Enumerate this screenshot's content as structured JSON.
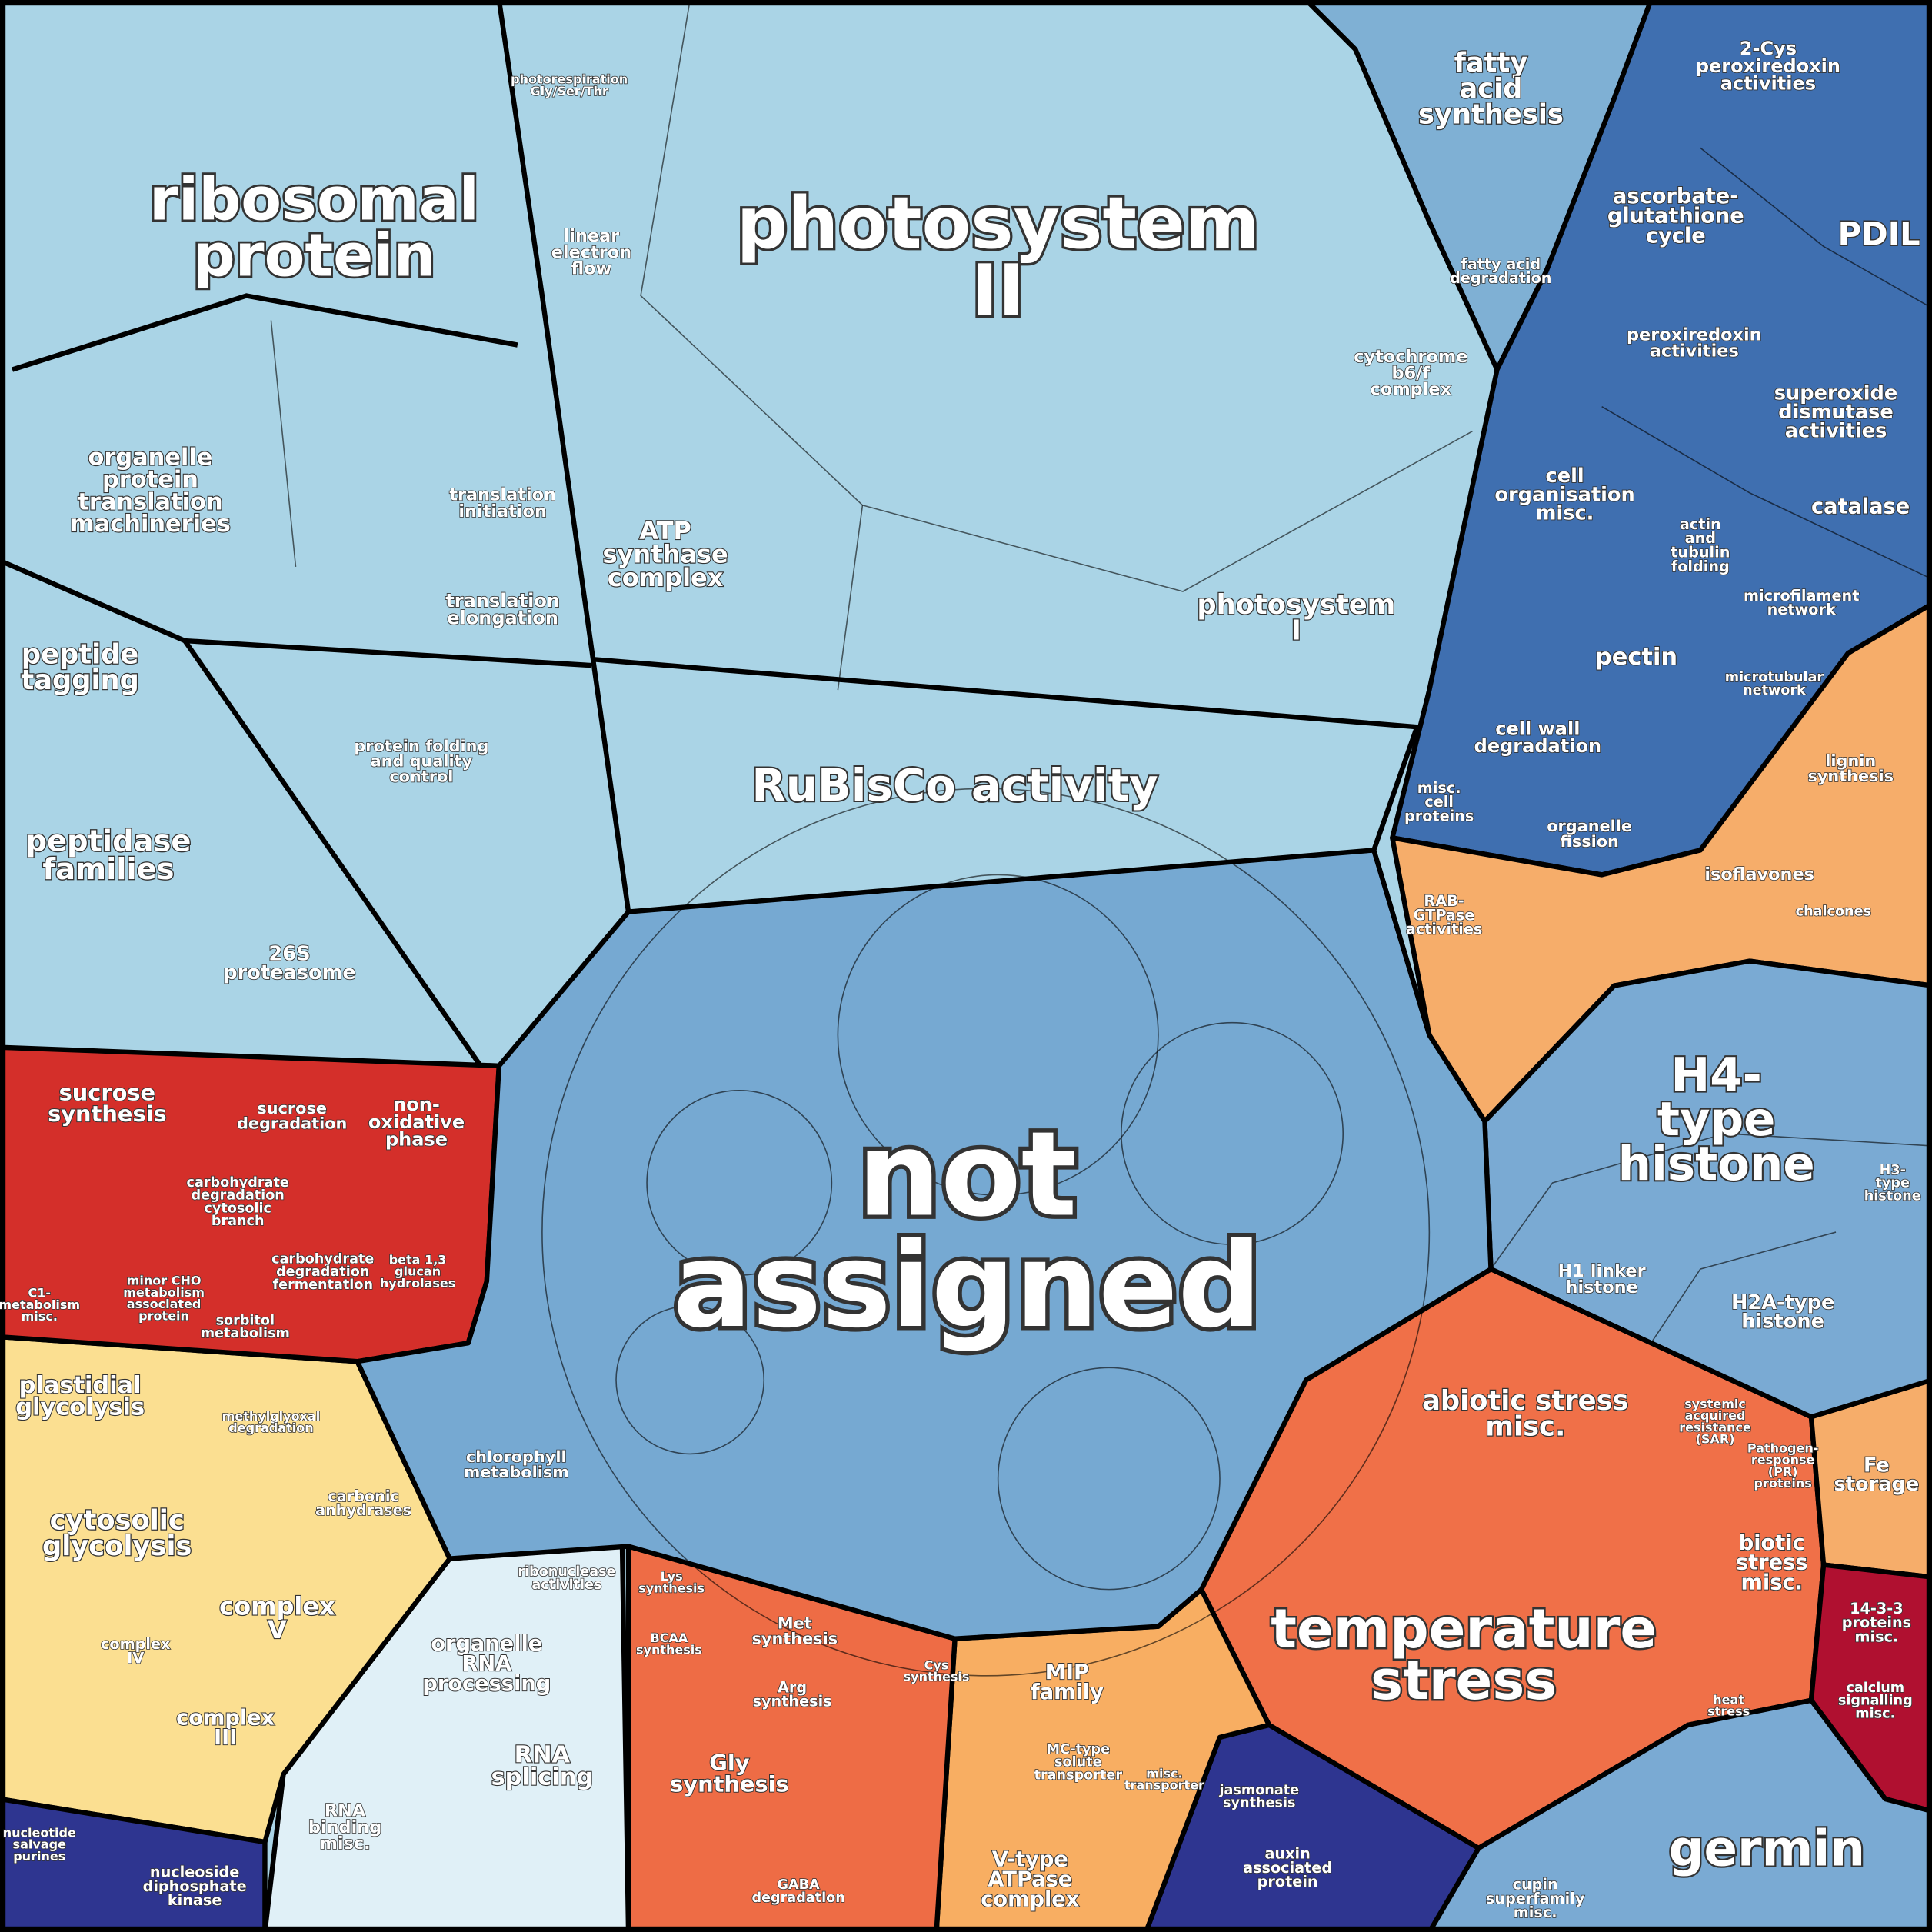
{
  "labels": [
    {
      "lines": [
        "ribosomal",
        "protein"
      ]
    },
    {
      "lines": [
        "photosystem",
        "II"
      ]
    },
    {
      "lines": [
        "not",
        "assigned"
      ]
    },
    {
      "lines": [
        "RuBisCo activity"
      ]
    },
    {
      "lines": [
        "ATP",
        "synthase",
        "complex"
      ]
    },
    {
      "lines": [
        "photosystem",
        "I"
      ]
    },
    {
      "lines": [
        "linear",
        "electron",
        "flow"
      ]
    },
    {
      "lines": [
        "cytochrome",
        "b6/f",
        "complex"
      ]
    },
    {
      "lines": [
        "organelle",
        "protein",
        "translation",
        "machineries"
      ]
    },
    {
      "lines": [
        "translation",
        "initiation"
      ]
    },
    {
      "lines": [
        "translation",
        "elongation"
      ]
    },
    {
      "lines": [
        "peptide",
        "tagging"
      ]
    },
    {
      "lines": [
        "peptidase",
        "families"
      ]
    },
    {
      "lines": [
        "protein folding",
        "and quality",
        "control"
      ]
    },
    {
      "lines": [
        "26S",
        "proteasome"
      ]
    },
    {
      "lines": [
        "fatty",
        "acid",
        "synthesis"
      ]
    },
    {
      "lines": [
        "fatty acid",
        "degradation"
      ]
    },
    {
      "lines": [
        "2-Cys",
        "peroxiredoxin",
        "activities"
      ]
    },
    {
      "lines": [
        "ascorbate-",
        "glutathione",
        "cycle"
      ]
    },
    {
      "lines": [
        "PDIL"
      ]
    },
    {
      "lines": [
        "peroxiredoxin",
        "activities"
      ]
    },
    {
      "lines": [
        "superoxide",
        "dismutase",
        "activities"
      ]
    },
    {
      "lines": [
        "catalase"
      ]
    },
    {
      "lines": [
        "cell",
        "organisation",
        "misc."
      ]
    },
    {
      "lines": [
        "actin",
        "and",
        "tubulin",
        "folding"
      ]
    },
    {
      "lines": [
        "microfilament",
        "network"
      ]
    },
    {
      "lines": [
        "pectin"
      ]
    },
    {
      "lines": [
        "cell wall",
        "degradation"
      ]
    },
    {
      "lines": [
        "microtubular",
        "network"
      ]
    },
    {
      "lines": [
        "misc.",
        "cell",
        "proteins"
      ]
    },
    {
      "lines": [
        "organelle",
        "fission"
      ]
    },
    {
      "lines": [
        "lignin",
        "synthesis"
      ]
    },
    {
      "lines": [
        "isoflavones"
      ]
    },
    {
      "lines": [
        "chalcones"
      ]
    },
    {
      "lines": [
        "RAB-",
        "GTPase",
        "activities"
      ]
    },
    {
      "lines": [
        "H4-",
        "type",
        "histone"
      ]
    },
    {
      "lines": [
        "H1 linker",
        "histone"
      ]
    },
    {
      "lines": [
        "H2A-type",
        "histone"
      ]
    },
    {
      "lines": [
        "H3-",
        "type",
        "histone"
      ]
    },
    {
      "lines": [
        "abiotic stress",
        "misc."
      ]
    },
    {
      "lines": [
        "temperature",
        "stress"
      ]
    },
    {
      "lines": [
        "systemic",
        "acquired",
        "resistance",
        "(SAR)"
      ]
    },
    {
      "lines": [
        "Pathogen-",
        "response",
        "(PR)",
        "proteins"
      ]
    },
    {
      "lines": [
        "Fe",
        "storage"
      ]
    },
    {
      "lines": [
        "biotic",
        "stress",
        "misc."
      ]
    },
    {
      "lines": [
        "14-3-3",
        "proteins",
        "misc."
      ]
    },
    {
      "lines": [
        "calcium",
        "signalling",
        "misc."
      ]
    },
    {
      "lines": [
        "germin"
      ]
    },
    {
      "lines": [
        "cupin",
        "superfamily",
        "misc."
      ]
    },
    {
      "lines": [
        "jasmonate",
        "synthesis"
      ]
    },
    {
      "lines": [
        "auxin",
        "associated",
        "protein"
      ]
    },
    {
      "lines": [
        "heat",
        "stress"
      ]
    },
    {
      "lines": [
        "MIP",
        "family"
      ]
    },
    {
      "lines": [
        "MC-type",
        "solute",
        "transporter"
      ]
    },
    {
      "lines": [
        "V-type",
        "ATPase",
        "complex"
      ]
    },
    {
      "lines": [
        "misc.",
        "transporter"
      ]
    },
    {
      "lines": [
        "Met",
        "synthesis"
      ]
    },
    {
      "lines": [
        "Arg",
        "synthesis"
      ]
    },
    {
      "lines": [
        "Gly",
        "synthesis"
      ]
    },
    {
      "lines": [
        "Lys",
        "synthesis"
      ]
    },
    {
      "lines": [
        "BCAA",
        "synthesis"
      ]
    },
    {
      "lines": [
        "Cys",
        "synthesis"
      ]
    },
    {
      "lines": [
        "GABA",
        "degradation"
      ]
    },
    {
      "lines": [
        "organelle",
        "RNA",
        "processing"
      ]
    },
    {
      "lines": [
        "ribonuclease",
        "activities"
      ]
    },
    {
      "lines": [
        "RNA",
        "splicing"
      ]
    },
    {
      "lines": [
        "RNA",
        "binding",
        "misc."
      ]
    },
    {
      "lines": [
        "plastidial",
        "glycolysis"
      ]
    },
    {
      "lines": [
        "cytosolic",
        "glycolysis"
      ]
    },
    {
      "lines": [
        "methylglyoxal",
        "degradation"
      ]
    },
    {
      "lines": [
        "carbonic",
        "anhydrases"
      ]
    },
    {
      "lines": [
        "complex",
        "V"
      ]
    },
    {
      "lines": [
        "complex",
        "IV"
      ]
    },
    {
      "lines": [
        "complex",
        "III"
      ]
    },
    {
      "lines": [
        "nucleotide",
        "salvage",
        "purines"
      ]
    },
    {
      "lines": [
        "nucleoside",
        "diphosphate",
        "kinase"
      ]
    },
    {
      "lines": [
        "sucrose",
        "synthesis"
      ]
    },
    {
      "lines": [
        "sucrose",
        "degradation"
      ]
    },
    {
      "lines": [
        "non-",
        "oxidative",
        "phase"
      ]
    },
    {
      "lines": [
        "carbohydrate",
        "degradation",
        "cytosolic",
        "branch"
      ]
    },
    {
      "lines": [
        "carbohydrate",
        "degradation",
        "fermentation"
      ]
    },
    {
      "lines": [
        "beta 1,3",
        "glucan",
        "hydrolases"
      ]
    },
    {
      "lines": [
        "minor CHO",
        "metabolism",
        "associated",
        "protein"
      ]
    },
    {
      "lines": [
        "sorbitol",
        "metabolism"
      ]
    },
    {
      "lines": [
        "C1-",
        "metabolism",
        "misc."
      ]
    },
    {
      "lines": [
        "chlorophyll",
        "metabolism"
      ]
    },
    {
      "lines": [
        "photorespiration",
        "Gly/Ser/Thr"
      ]
    }
  ]
}
